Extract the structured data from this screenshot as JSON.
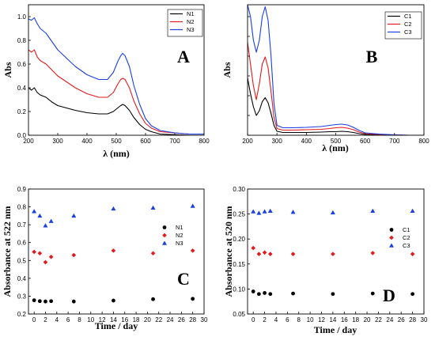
{
  "chart_data": [
    {
      "type": "line",
      "panel_letter": "A",
      "xlabel": "λ (nm)",
      "ylabel": "Abs",
      "xlim": [
        200,
        800
      ],
      "ylim": [
        0,
        1.1
      ],
      "xticks": [
        200,
        300,
        400,
        500,
        600,
        700,
        800
      ],
      "yticks": [
        0.0,
        0.2,
        0.4,
        0.6,
        0.8,
        1.0
      ],
      "legend_position": "top-right",
      "x": [
        200,
        210,
        220,
        230,
        240,
        260,
        280,
        300,
        330,
        360,
        400,
        440,
        470,
        490,
        505,
        515,
        522,
        530,
        545,
        560,
        580,
        600,
        620,
        650,
        700,
        750,
        800
      ],
      "series": [
        {
          "name": "N1",
          "color": "#000000",
          "values": [
            0.4,
            0.38,
            0.4,
            0.36,
            0.34,
            0.32,
            0.28,
            0.25,
            0.23,
            0.21,
            0.19,
            0.18,
            0.18,
            0.2,
            0.23,
            0.25,
            0.26,
            0.25,
            0.21,
            0.15,
            0.09,
            0.05,
            0.03,
            0.01,
            0.005,
            0.0,
            0.0
          ]
        },
        {
          "name": "N2",
          "color": "#e31a1c",
          "values": [
            0.72,
            0.7,
            0.72,
            0.66,
            0.63,
            0.6,
            0.55,
            0.5,
            0.45,
            0.4,
            0.35,
            0.32,
            0.32,
            0.36,
            0.43,
            0.47,
            0.48,
            0.47,
            0.4,
            0.29,
            0.18,
            0.1,
            0.06,
            0.03,
            0.02,
            0.01,
            0.01
          ]
        },
        {
          "name": "N3",
          "color": "#1a3fe3",
          "values": [
            0.98,
            0.97,
            0.99,
            0.94,
            0.9,
            0.86,
            0.79,
            0.72,
            0.65,
            0.58,
            0.51,
            0.47,
            0.47,
            0.53,
            0.62,
            0.67,
            0.69,
            0.67,
            0.58,
            0.42,
            0.26,
            0.14,
            0.08,
            0.04,
            0.02,
            0.01,
            0.01
          ]
        }
      ]
    },
    {
      "type": "line",
      "panel_letter": "B",
      "xlabel": "λ (nm)",
      "ylabel": "Abs",
      "xlim": [
        200,
        800
      ],
      "ylim": [
        0,
        3.3
      ],
      "xticks": [
        200,
        300,
        400,
        500,
        600,
        700,
        800
      ],
      "yticks": [],
      "legend_position": "top-right",
      "x": [
        200,
        210,
        220,
        230,
        240,
        250,
        260,
        270,
        280,
        290,
        300,
        320,
        350,
        400,
        450,
        480,
        500,
        520,
        540,
        560,
        580,
        600,
        650,
        700,
        750,
        800
      ],
      "series": [
        {
          "name": "C1",
          "color": "#000000",
          "values": [
            1.45,
            1.05,
            0.72,
            0.5,
            0.62,
            0.85,
            0.95,
            0.82,
            0.55,
            0.25,
            0.1,
            0.07,
            0.07,
            0.07,
            0.08,
            0.09,
            0.09,
            0.1,
            0.09,
            0.07,
            0.04,
            0.02,
            0.01,
            0.0,
            0.0,
            0.0
          ]
        },
        {
          "name": "C2",
          "color": "#e31a1c",
          "values": [
            2.35,
            1.8,
            1.25,
            0.9,
            1.3,
            1.8,
            1.98,
            1.7,
            1.1,
            0.45,
            0.17,
            0.13,
            0.13,
            0.14,
            0.15,
            0.17,
            0.19,
            0.2,
            0.18,
            0.14,
            0.08,
            0.04,
            0.02,
            0.01,
            0.0,
            0.0
          ]
        },
        {
          "name": "C3",
          "color": "#1a3fe3",
          "values": [
            3.3,
            3.0,
            2.4,
            2.1,
            2.4,
            3.0,
            3.25,
            2.9,
            2.0,
            0.8,
            0.25,
            0.19,
            0.19,
            0.2,
            0.22,
            0.25,
            0.27,
            0.28,
            0.26,
            0.2,
            0.12,
            0.06,
            0.03,
            0.01,
            0.0,
            0.0
          ]
        }
      ]
    },
    {
      "type": "scatter",
      "panel_letter": "C",
      "xlabel": "Time / day",
      "ylabel": "Absorbance at 522 nm",
      "xlim": [
        -1,
        30
      ],
      "ylim": [
        0.2,
        0.9
      ],
      "xticks": [
        0,
        2,
        4,
        6,
        8,
        10,
        12,
        14,
        16,
        18,
        20,
        22,
        24,
        26,
        28,
        30
      ],
      "yticks": [
        0.2,
        0.3,
        0.4,
        0.5,
        0.6,
        0.7,
        0.8,
        0.9
      ],
      "legend_position": "right",
      "x": [
        0,
        1,
        2,
        3,
        7,
        14,
        21,
        28
      ],
      "series": [
        {
          "name": "N1",
          "color": "#000000",
          "marker": "circle",
          "values": [
            0.277,
            0.272,
            0.27,
            0.272,
            0.27,
            0.275,
            0.283,
            0.285
          ]
        },
        {
          "name": "N2",
          "color": "#e31a1c",
          "marker": "diamond",
          "values": [
            0.548,
            0.54,
            0.49,
            0.52,
            0.53,
            0.555,
            0.54,
            0.555
          ]
        },
        {
          "name": "N3",
          "color": "#1a3fe3",
          "marker": "triangle",
          "values": [
            0.775,
            0.75,
            0.695,
            0.72,
            0.75,
            0.79,
            0.795,
            0.805
          ]
        }
      ]
    },
    {
      "type": "scatter",
      "panel_letter": "D",
      "xlabel": "Time / day",
      "ylabel": "Absorbance at 520 nm",
      "xlim": [
        -1,
        30
      ],
      "ylim": [
        0.05,
        0.3
      ],
      "xticks": [
        0,
        2,
        4,
        6,
        8,
        10,
        12,
        14,
        16,
        18,
        20,
        22,
        24,
        26,
        28,
        30
      ],
      "yticks": [
        0.05,
        0.1,
        0.15,
        0.2,
        0.25,
        0.3
      ],
      "legend_position": "right",
      "x": [
        0,
        1,
        2,
        3,
        7,
        14,
        21,
        28
      ],
      "series": [
        {
          "name": "C1",
          "color": "#000000",
          "marker": "circle",
          "values": [
            0.095,
            0.09,
            0.092,
            0.09,
            0.091,
            0.09,
            0.091,
            0.09
          ]
        },
        {
          "name": "C2",
          "color": "#e31a1c",
          "marker": "diamond",
          "values": [
            0.182,
            0.17,
            0.173,
            0.17,
            0.17,
            0.17,
            0.172,
            0.17
          ]
        },
        {
          "name": "C3",
          "color": "#1a3fe3",
          "marker": "triangle",
          "values": [
            0.255,
            0.252,
            0.255,
            0.256,
            0.254,
            0.253,
            0.256,
            0.256
          ]
        }
      ]
    }
  ]
}
